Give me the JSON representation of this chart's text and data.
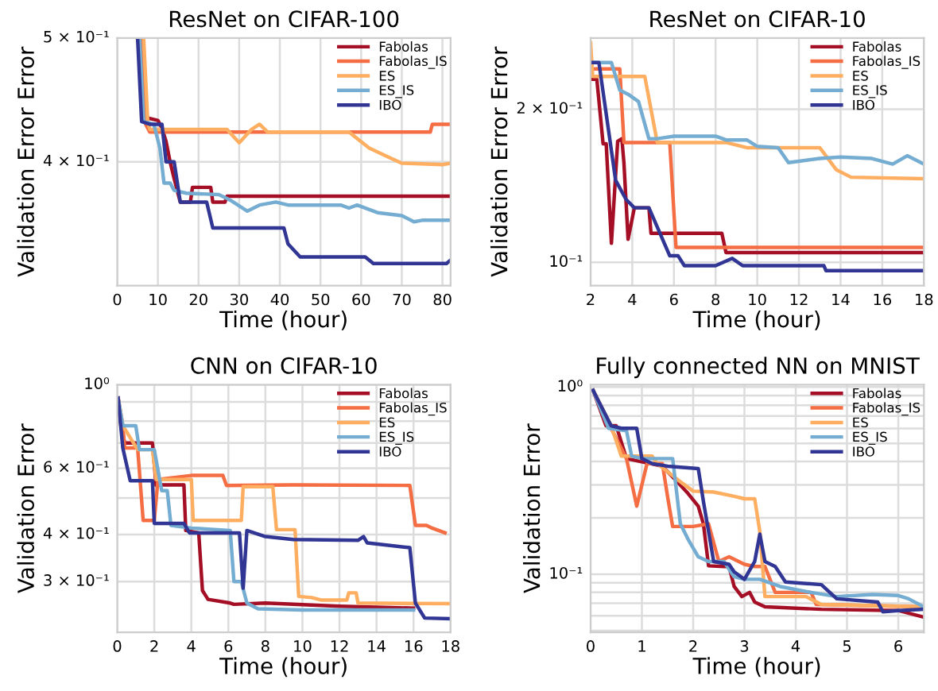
{
  "chart_data": [
    {
      "type": "line",
      "title": "ResNet on CIFAR-100",
      "xlabel": "Time (hour)",
      "ylabel": "Validation Error Error",
      "log": "y",
      "grid": true,
      "legend": "top right",
      "xlim": [
        0,
        82
      ],
      "xticks": [
        0,
        10,
        20,
        30,
        40,
        50,
        60,
        70,
        80
      ],
      "ylim": [
        0.32,
        0.5
      ],
      "yticks": [
        {
          "value": 0.4,
          "label": "4 × 10⁻¹"
        },
        {
          "value": 0.5,
          "label": "5 × 10⁻¹"
        }
      ],
      "series": [
        {
          "name": "Fabolas",
          "color": "#a50f26",
          "x": [
            5,
            6,
            6,
            10,
            11,
            12,
            13,
            14,
            15.5,
            18,
            18.5,
            23,
            23.5,
            26.5,
            27,
            82
          ],
          "values": [
            0.5,
            0.5,
            0.434,
            0.431,
            0.425,
            0.415,
            0.4,
            0.388,
            0.372,
            0.372,
            0.382,
            0.382,
            0.372,
            0.372,
            0.376,
            0.376
          ]
        },
        {
          "name": "Fabolas_IS",
          "color": "#f46d43",
          "x": [
            6,
            7,
            8,
            77,
            77.5,
            82
          ],
          "values": [
            0.5,
            0.428,
            0.422,
            0.422,
            0.428,
            0.428
          ]
        },
        {
          "name": "ES",
          "color": "#fdae61",
          "x": [
            6.5,
            7.5,
            8,
            27,
            30,
            33,
            35,
            37,
            57,
            62,
            67,
            70,
            80,
            82
          ],
          "values": [
            0.5,
            0.43,
            0.424,
            0.424,
            0.414,
            0.424,
            0.428,
            0.422,
            0.422,
            0.41,
            0.403,
            0.399,
            0.398,
            0.399
          ]
        },
        {
          "name": "ES_IS",
          "color": "#74add1",
          "x": [
            5.5,
            6.5,
            9,
            10.5,
            11.5,
            13,
            14,
            17,
            25,
            28,
            32,
            35,
            39,
            42,
            55,
            57,
            59,
            64,
            70,
            73,
            75,
            82
          ],
          "values": [
            0.5,
            0.43,
            0.428,
            0.41,
            0.385,
            0.385,
            0.38,
            0.378,
            0.377,
            0.373,
            0.366,
            0.37,
            0.372,
            0.37,
            0.37,
            0.368,
            0.37,
            0.365,
            0.363,
            0.359,
            0.36,
            0.36
          ]
        },
        {
          "name": "IBO",
          "color": "#313695",
          "x": [
            5,
            6,
            8,
            11,
            12,
            14,
            15.5,
            22,
            23.5,
            41,
            42,
            45,
            61,
            63,
            81,
            82
          ],
          "values": [
            0.5,
            0.43,
            0.428,
            0.428,
            0.4,
            0.4,
            0.372,
            0.372,
            0.355,
            0.355,
            0.345,
            0.337,
            0.337,
            0.333,
            0.333,
            0.335
          ]
        }
      ]
    },
    {
      "type": "line",
      "title": "ResNet on CIFAR-10",
      "xlabel": "Time (hour)",
      "ylabel": "Validation Error Error",
      "log": "y",
      "grid": true,
      "legend": "top right",
      "xlim": [
        2,
        18
      ],
      "xticks": [
        2,
        4,
        6,
        8,
        10,
        12,
        14,
        16,
        18
      ],
      "ylim": [
        0.09,
        0.276
      ],
      "yticks": [
        {
          "value": 0.1,
          "label": "10⁻¹"
        },
        {
          "value": 0.2,
          "label": "2 × 10⁻¹"
        }
      ],
      "series": [
        {
          "name": "Fabolas",
          "color": "#a50f26",
          "x": [
            2,
            2.3,
            2.6,
            2.75,
            3,
            3.3,
            3.5,
            3.6,
            3.8,
            4.1,
            4.8,
            4.9,
            8.3,
            8.5,
            18
          ],
          "values": [
            0.229,
            0.229,
            0.171,
            0.171,
            0.109,
            0.173,
            0.175,
            0.157,
            0.111,
            0.128,
            0.128,
            0.114,
            0.114,
            0.1045,
            0.1045
          ]
        },
        {
          "name": "Fabolas_IS",
          "color": "#f46d43",
          "x": [
            2,
            3.4,
            3.6,
            5.8,
            6.1,
            18
          ],
          "values": [
            0.24,
            0.24,
            0.172,
            0.172,
            0.107,
            0.107
          ]
        },
        {
          "name": "ES",
          "color": "#fdae61",
          "x": [
            2,
            2.1,
            4.6,
            5.2,
            8.5,
            9.5,
            13,
            13.8,
            14.5,
            18
          ],
          "values": [
            0.27,
            0.232,
            0.232,
            0.172,
            0.172,
            0.168,
            0.168,
            0.152,
            0.147,
            0.146
          ]
        },
        {
          "name": "ES_IS",
          "color": "#74add1",
          "x": [
            2,
            3,
            3.4,
            3.8,
            4.3,
            4.8,
            5.2,
            6,
            8,
            8.5,
            9.5,
            10,
            11,
            11.5,
            12,
            13,
            14,
            15.5,
            16.5,
            17.2,
            18
          ],
          "values": [
            0.247,
            0.247,
            0.218,
            0.214,
            0.207,
            0.175,
            0.175,
            0.177,
            0.177,
            0.174,
            0.174,
            0.169,
            0.168,
            0.157,
            0.158,
            0.16,
            0.161,
            0.16,
            0.156,
            0.162,
            0.156
          ]
        },
        {
          "name": "IBO",
          "color": "#313695",
          "x": [
            2,
            2.4,
            3.2,
            3.7,
            4.1,
            4.8,
            5.8,
            6.2,
            6.5,
            8,
            8.8,
            9.3,
            13.2,
            13.3,
            18
          ],
          "values": [
            0.247,
            0.247,
            0.145,
            0.133,
            0.128,
            0.128,
            0.103,
            0.103,
            0.0985,
            0.0985,
            0.1018,
            0.0985,
            0.0985,
            0.0963,
            0.0963
          ]
        }
      ]
    },
    {
      "type": "line",
      "title": "CNN on CIFAR-10",
      "xlabel": "Time (hour)",
      "ylabel": "Validation Error",
      "log": "y",
      "grid": true,
      "legend": "top right",
      "xlim": [
        0,
        18
      ],
      "xticks": [
        0,
        2,
        4,
        6,
        8,
        10,
        12,
        14,
        16,
        18
      ],
      "ylim": [
        0.22,
        1.0
      ],
      "yticks": [
        {
          "value": 0.3,
          "label": "3 × 10⁻¹"
        },
        {
          "value": 0.4,
          "label": "4 × 10⁻¹"
        },
        {
          "value": 0.5,
          "label": null
        },
        {
          "value": 0.6,
          "label": "6 × 10⁻¹"
        },
        {
          "value": 0.7,
          "label": null
        },
        {
          "value": 0.8,
          "label": null
        },
        {
          "value": 0.9,
          "label": null
        },
        {
          "value": 1.0,
          "label": "10⁰"
        }
      ],
      "series": [
        {
          "name": "Fabolas",
          "color": "#a50f26",
          "x": [
            0.05,
            0.2,
            0.4,
            1.9,
            2.1,
            2.3,
            3.6,
            3.7,
            4.4,
            4.6,
            4.9,
            6.1,
            6.3,
            8,
            12,
            16
          ],
          "values": [
            0.921,
            0.778,
            0.7,
            0.7,
            0.54,
            0.542,
            0.542,
            0.41,
            0.404,
            0.284,
            0.269,
            0.263,
            0.261,
            0.263,
            0.258,
            0.255
          ]
        },
        {
          "name": "Fabolas_IS",
          "color": "#f46d43",
          "x": [
            0.05,
            0.3,
            0.4,
            1.1,
            1.4,
            2,
            2.2,
            4,
            5.7,
            5.9,
            9.5,
            15.8,
            16.1,
            16.7,
            17,
            17.7
          ],
          "values": [
            0.921,
            0.778,
            0.679,
            0.679,
            0.436,
            0.436,
            0.56,
            0.574,
            0.574,
            0.54,
            0.542,
            0.54,
            0.423,
            0.423,
            0.416,
            0.404
          ]
        },
        {
          "name": "ES",
          "color": "#fdae61",
          "x": [
            0.05,
            0.3,
            1.1,
            1.9,
            2.1,
            4,
            4.1,
            6.7,
            6.8,
            8.4,
            8.6,
            9.6,
            9.8,
            10.5,
            11,
            12.4,
            12.5,
            12.9,
            13,
            18
          ],
          "values": [
            0.921,
            0.778,
            0.672,
            0.672,
            0.56,
            0.56,
            0.436,
            0.436,
            0.536,
            0.536,
            0.412,
            0.412,
            0.274,
            0.272,
            0.268,
            0.268,
            0.28,
            0.28,
            0.263,
            0.262
          ]
        },
        {
          "name": "ES_IS",
          "color": "#74add1",
          "x": [
            0.05,
            0.3,
            1,
            1.2,
            2,
            2.4,
            2.7,
            2.9,
            4,
            6.1,
            6.3,
            6.7,
            7,
            7.6,
            10,
            16
          ],
          "values": [
            0.921,
            0.778,
            0.778,
            0.672,
            0.672,
            0.523,
            0.523,
            0.423,
            0.416,
            0.41,
            0.3,
            0.3,
            0.263,
            0.254,
            0.252,
            0.252
          ]
        },
        {
          "name": "IBO",
          "color": "#313695",
          "x": [
            0.05,
            0.3,
            0.7,
            1.9,
            2,
            3.6,
            3.9,
            6.6,
            6.8,
            7,
            8,
            9.5,
            13,
            13.3,
            13.5,
            15.8,
            16.1,
            16.6,
            18
          ],
          "values": [
            0.921,
            0.679,
            0.556,
            0.556,
            0.428,
            0.428,
            0.404,
            0.404,
            0.288,
            0.41,
            0.395,
            0.388,
            0.386,
            0.395,
            0.38,
            0.369,
            0.263,
            0.24,
            0.239
          ]
        }
      ]
    },
    {
      "type": "line",
      "title": "Fully connected NN on MNIST",
      "xlabel": "Time (hour)",
      "ylabel": "Validation Error",
      "log": "y",
      "grid": true,
      "legend": "top right",
      "xlim": [
        0,
        6.5
      ],
      "xticks": [
        0,
        1,
        2,
        3,
        4,
        5,
        6
      ],
      "ylim": [
        0.049,
        1.03
      ],
      "yticks": [
        {
          "value": 0.05,
          "label": null
        },
        {
          "value": 0.06,
          "label": null
        },
        {
          "value": 0.07,
          "label": null
        },
        {
          "value": 0.08,
          "label": null
        },
        {
          "value": 0.09,
          "label": null
        },
        {
          "value": 0.1,
          "label": "10⁻¹"
        },
        {
          "value": 0.2,
          "label": null
        },
        {
          "value": 0.3,
          "label": null
        },
        {
          "value": 0.4,
          "label": null
        },
        {
          "value": 0.5,
          "label": null
        },
        {
          "value": 0.6,
          "label": null
        },
        {
          "value": 0.7,
          "label": null
        },
        {
          "value": 0.8,
          "label": null
        },
        {
          "value": 0.9,
          "label": null
        },
        {
          "value": 1.0,
          "label": "10⁰"
        }
      ],
      "series": [
        {
          "name": "Fabolas",
          "color": "#a50f26",
          "x": [
            0.05,
            0.3,
            0.5,
            0.7,
            1.4,
            1.7,
            1.9,
            2.1,
            2.2,
            2.3,
            2.6,
            2.7,
            2.8,
            2.95,
            3.1,
            3.2,
            3.4,
            4.5,
            6,
            6.5
          ],
          "values": [
            0.96,
            0.621,
            0.621,
            0.415,
            0.378,
            0.31,
            0.27,
            0.231,
            0.186,
            0.111,
            0.11,
            0.11,
            0.086,
            0.076,
            0.08,
            0.071,
            0.067,
            0.065,
            0.064,
            0.059
          ]
        },
        {
          "name": "Fabolas_IS",
          "color": "#f46d43",
          "x": [
            0.05,
            0.4,
            0.7,
            0.9,
            1.1,
            1.4,
            1.5,
            1.6,
            2.0,
            2.3,
            2.5,
            2.7,
            3.0,
            3.2,
            3.4,
            3.6,
            4.3,
            4.4,
            6.5
          ],
          "values": [
            0.96,
            0.602,
            0.415,
            0.231,
            0.39,
            0.39,
            0.261,
            0.18,
            0.18,
            0.186,
            0.117,
            0.124,
            0.113,
            0.11,
            0.11,
            0.08,
            0.08,
            0.069,
            0.067
          ]
        },
        {
          "name": "ES",
          "color": "#fdae61",
          "x": [
            0.05,
            0.4,
            0.6,
            1.2,
            1.3,
            1.8,
            2.0,
            2.4,
            2.8,
            3.0,
            3.2,
            3.3,
            3.4,
            4.2,
            4.5,
            6.5
          ],
          "values": [
            0.96,
            0.621,
            0.428,
            0.428,
            0.39,
            0.305,
            0.278,
            0.275,
            0.261,
            0.253,
            0.253,
            0.169,
            0.076,
            0.076,
            0.069,
            0.067
          ]
        },
        {
          "name": "ES_IS",
          "color": "#74add1",
          "x": [
            0.05,
            0.35,
            0.7,
            0.8,
            1.0,
            1.6,
            1.75,
            1.9,
            2.1,
            2.3,
            2.6,
            2.8,
            3.0,
            3.3,
            3.7,
            4.3,
            4.8,
            5.5,
            6.0,
            6.2,
            6.5
          ],
          "values": [
            0.96,
            0.602,
            0.584,
            0.428,
            0.415,
            0.415,
            0.186,
            0.154,
            0.124,
            0.117,
            0.117,
            0.097,
            0.094,
            0.094,
            0.086,
            0.08,
            0.076,
            0.078,
            0.077,
            0.074,
            0.067
          ]
        },
        {
          "name": "IBO",
          "color": "#313695",
          "x": [
            0.05,
            0.4,
            0.6,
            0.9,
            1.0,
            1.2,
            1.5,
            2.1,
            2.2,
            2.4,
            2.7,
            2.8,
            3.0,
            3.2,
            3.3,
            3.4,
            3.6,
            3.8,
            4.5,
            4.8,
            5.6,
            5.7,
            6.0,
            6.5
          ],
          "values": [
            0.96,
            0.621,
            0.602,
            0.602,
            0.415,
            0.39,
            0.378,
            0.367,
            0.245,
            0.117,
            0.113,
            0.103,
            0.094,
            0.117,
            0.164,
            0.117,
            0.11,
            0.091,
            0.088,
            0.074,
            0.071,
            0.063,
            0.064,
            0.065
          ]
        }
      ]
    }
  ]
}
